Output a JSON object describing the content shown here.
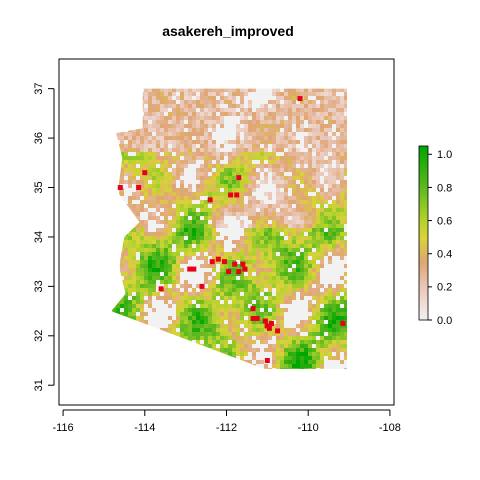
{
  "chart_data": {
    "type": "heatmap",
    "title": "asakereh_improved",
    "xlabel": "",
    "ylabel": "",
    "xlim": [
      -116.1,
      -107.9
    ],
    "ylim": [
      30.6,
      37.6
    ],
    "x_ticks": [
      -116,
      -114,
      -112,
      -110,
      -108
    ],
    "y_ticks": [
      31,
      32,
      33,
      34,
      35,
      36,
      37
    ],
    "x_tick_labels": [
      "-116",
      "-114",
      "-112",
      "-110",
      "-108"
    ],
    "y_tick_labels": [
      "31",
      "32",
      "33",
      "34",
      "35",
      "36",
      "37"
    ],
    "grid": false,
    "colorbar": {
      "range": [
        0,
        1.05
      ],
      "ticks": [
        0.0,
        0.2,
        0.4,
        0.6,
        0.8,
        1.0
      ],
      "tick_labels": [
        "0.0",
        "0.2",
        "0.4",
        "0.6",
        "0.8",
        "1.0"
      ],
      "stops": [
        {
          "value": 0.0,
          "color": "#f2f2f2"
        },
        {
          "value": 0.2,
          "color": "#eac7b8"
        },
        {
          "value": 0.35,
          "color": "#dfa574"
        },
        {
          "value": 0.5,
          "color": "#d9d23a"
        },
        {
          "value": 0.6,
          "color": "#b5d22e"
        },
        {
          "value": 0.8,
          "color": "#5fb820"
        },
        {
          "value": 1.05,
          "color": "#00a600"
        }
      ]
    },
    "colors": {
      "no_data": "#f2f2f2",
      "points": "#e8001a"
    },
    "region_outline": [
      [
        -114.05,
        37.0
      ],
      [
        -109.05,
        37.0
      ],
      [
        -109.05,
        31.33
      ],
      [
        -111.07,
        31.33
      ],
      [
        -114.82,
        32.5
      ],
      [
        -114.47,
        32.85
      ],
      [
        -114.63,
        33.4
      ],
      [
        -114.5,
        34.0
      ],
      [
        -114.13,
        34.3
      ],
      [
        -114.63,
        34.87
      ],
      [
        -114.63,
        35.1
      ],
      [
        -114.55,
        35.6
      ],
      [
        -114.7,
        36.1
      ],
      [
        -114.05,
        36.2
      ]
    ],
    "points": [
      {
        "x": -114.6,
        "y": 35.0
      },
      {
        "x": -114.15,
        "y": 35.0
      },
      {
        "x": -114.0,
        "y": 35.3
      },
      {
        "x": -111.7,
        "y": 35.2
      },
      {
        "x": -112.4,
        "y": 34.75
      },
      {
        "x": -111.9,
        "y": 34.85
      },
      {
        "x": -111.75,
        "y": 34.85
      },
      {
        "x": -110.2,
        "y": 36.8
      },
      {
        "x": -112.35,
        "y": 33.5
      },
      {
        "x": -112.2,
        "y": 33.55
      },
      {
        "x": -112.05,
        "y": 33.5
      },
      {
        "x": -111.8,
        "y": 33.45
      },
      {
        "x": -111.6,
        "y": 33.45
      },
      {
        "x": -112.9,
        "y": 33.35
      },
      {
        "x": -112.8,
        "y": 33.35
      },
      {
        "x": -111.55,
        "y": 33.35
      },
      {
        "x": -111.95,
        "y": 33.3
      },
      {
        "x": -111.7,
        "y": 33.3
      },
      {
        "x": -112.6,
        "y": 33.0
      },
      {
        "x": -113.6,
        "y": 32.95
      },
      {
        "x": -111.35,
        "y": 32.55
      },
      {
        "x": -111.25,
        "y": 32.35
      },
      {
        "x": -111.35,
        "y": 32.35
      },
      {
        "x": -111.0,
        "y": 32.2
      },
      {
        "x": -110.9,
        "y": 32.25
      },
      {
        "x": -110.95,
        "y": 32.15
      },
      {
        "x": -110.75,
        "y": 32.1
      },
      {
        "x": -111.05,
        "y": 32.3
      },
      {
        "x": -111.0,
        "y": 31.5
      },
      {
        "x": -109.15,
        "y": 32.25
      }
    ]
  }
}
